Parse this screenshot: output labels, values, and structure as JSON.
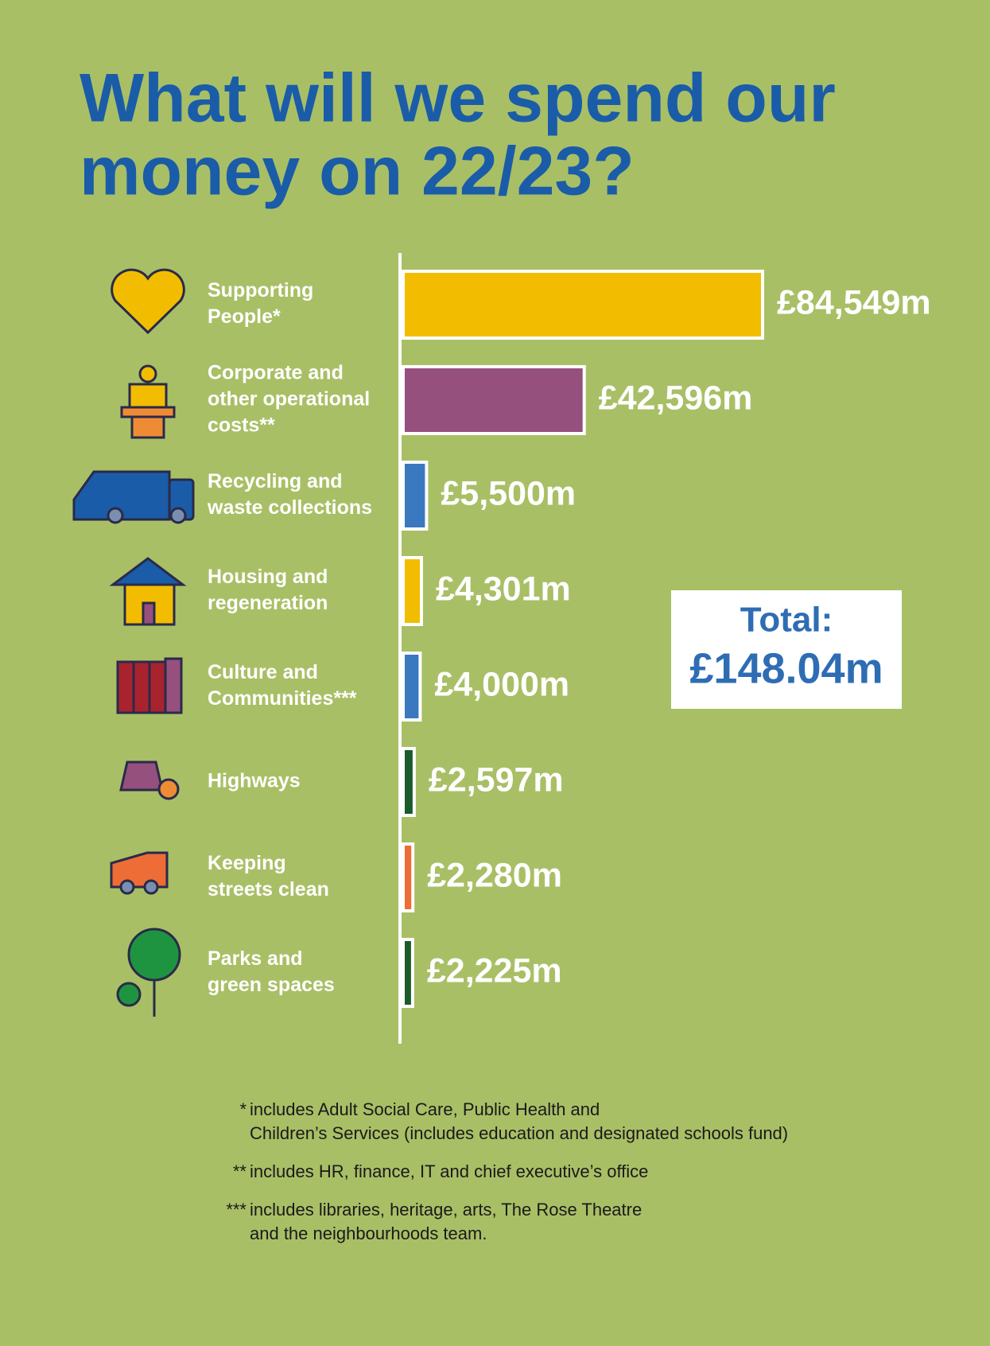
{
  "chart_data": {
    "type": "bar",
    "title": [
      "What will we spend our",
      "money on 22/23?"
    ],
    "categories": [
      [
        "Supporting",
        "People*"
      ],
      [
        "Corporate and",
        "other operational",
        "costs**"
      ],
      [
        "Recycling and",
        "waste collections"
      ],
      [
        "Housing and",
        "regeneration"
      ],
      [
        "Culture and",
        "Communities***"
      ],
      [
        "Highways"
      ],
      [
        "Keeping",
        "streets clean"
      ],
      [
        "Parks and",
        "green spaces"
      ]
    ],
    "values": [
      84549,
      42596,
      5500,
      4301,
      4000,
      2597,
      2280,
      2225
    ],
    "value_labels": [
      "£84,549m",
      "£42,596m",
      "£5,500m",
      "£4,301m",
      "£4,000m",
      "£2,597m",
      "£2,280m",
      "£2,225m"
    ],
    "colors": [
      "#f2bd00",
      "#96507e",
      "#3a78c0",
      "#f2bd00",
      "#3a78c0",
      "#1b5a2a",
      "#ee6c35",
      "#1b5a2a"
    ],
    "total": [
      "Total:",
      "£148.04m"
    ],
    "notes": [
      {
        "marker": "*",
        "lines": [
          "includes Adult Social Care, Public Health and",
          "Children’s Services (includes education and designated schools fund)"
        ]
      },
      {
        "marker": "**",
        "lines": [
          "includes HR, finance, IT and chief executive’s office"
        ]
      },
      {
        "marker": "***",
        "lines": [
          "includes libraries, heritage, arts, The Rose Theatre",
          "and the neighbourhoods team."
        ]
      }
    ]
  }
}
